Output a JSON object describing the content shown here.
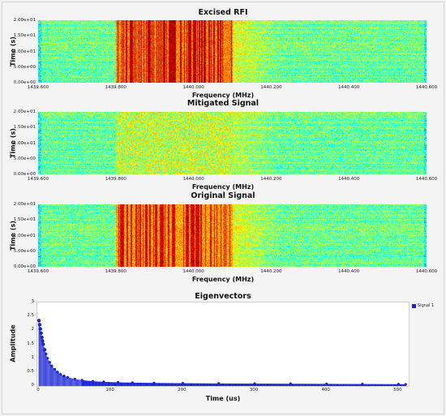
{
  "chart_data": [
    {
      "type": "heatmap",
      "title": "Excised RFI",
      "xlabel": "Frequency (MHz)",
      "ylabel": "Time (s)",
      "xlim": [
        1439.6,
        1440.6
      ],
      "ylim": [
        0,
        20
      ],
      "x_ticks": [
        "1439.600",
        "1439.800",
        "1440.000",
        "1440.200",
        "1440.400",
        "1440.600"
      ],
      "y_ticks": [
        "0.00e+00",
        "5.00e+00",
        "1.00e+01",
        "1.50e+01",
        "2.00e+01"
      ],
      "rfi_band": [
        1439.8,
        1440.1
      ],
      "colormap": "jet"
    },
    {
      "type": "heatmap",
      "title": "Mitigated Signal",
      "xlabel": "Frequency (MHz)",
      "ylabel": "Time (s)",
      "xlim": [
        1439.6,
        1440.6
      ],
      "ylim": [
        0,
        20
      ],
      "x_ticks": [
        "1439.600",
        "1439.800",
        "1440.000",
        "1440.200",
        "1440.400",
        "1440.600"
      ],
      "y_ticks": [
        "0.00e+00",
        "5.00e+00",
        "1.00e+01",
        "1.50e+01",
        "2.00e+01"
      ],
      "rfi_band": [
        1439.8,
        1440.1
      ],
      "colormap": "jet"
    },
    {
      "type": "heatmap",
      "title": "Original Signal",
      "xlabel": "Frequency (MHz)",
      "ylabel": "Time (s)",
      "xlim": [
        1439.6,
        1440.6
      ],
      "ylim": [
        0,
        20
      ],
      "x_ticks": [
        "1439.600",
        "1439.800",
        "1440.000",
        "1440.200",
        "1440.400",
        "1440.600"
      ],
      "y_ticks": [
        "0.00e+00",
        "5.00e+00",
        "1.00e+01",
        "1.50e+01",
        "2.00e+01"
      ],
      "rfi_band": [
        1439.8,
        1440.1
      ],
      "colormap": "jet"
    },
    {
      "type": "bar",
      "title": "Eigenvectors",
      "xlabel": "Time (us)",
      "ylabel": "Amplitude",
      "xlim": [
        0,
        512
      ],
      "ylim": [
        0,
        3
      ],
      "x_ticks": [
        "0",
        "100",
        "200",
        "300",
        "400",
        "500"
      ],
      "y_ticks": [
        "0",
        "0.5",
        "1",
        "1.5",
        "2",
        "2.5",
        "3"
      ],
      "legend": "top-right",
      "series": [
        {
          "name": "Signal 1",
          "color": "#1a23d6",
          "x": [
            0,
            1,
            2,
            3,
            4,
            5,
            6,
            8,
            10,
            12,
            15,
            18,
            22,
            26,
            30,
            35,
            40,
            50,
            60,
            75,
            90,
            110,
            130,
            160,
            200,
            250,
            300,
            350,
            400,
            450,
            500,
            510
          ],
          "values": [
            2.35,
            2.2,
            2.05,
            1.9,
            1.75,
            1.62,
            1.5,
            1.3,
            1.15,
            1.0,
            0.85,
            0.72,
            0.6,
            0.5,
            0.42,
            0.36,
            0.31,
            0.25,
            0.21,
            0.17,
            0.15,
            0.13,
            0.12,
            0.11,
            0.1,
            0.09,
            0.085,
            0.08,
            0.075,
            0.07,
            0.065,
            0.06
          ]
        }
      ]
    }
  ]
}
